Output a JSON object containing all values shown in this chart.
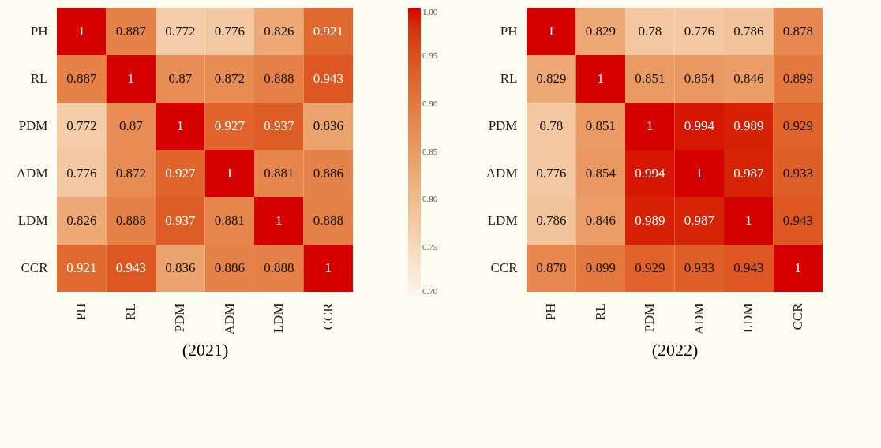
{
  "chart_data": [
    {
      "type": "heatmap",
      "xlabel": "(2021)",
      "categories": [
        "PH",
        "RL",
        "PDM",
        "ADM",
        "LDM",
        "CCR"
      ],
      "y_categories": [
        "PH",
        "RL",
        "PDM",
        "ADM",
        "LDM",
        "CCR"
      ],
      "cells": [
        [
          1,
          0.887,
          0.772,
          0.776,
          0.826,
          0.921
        ],
        [
          0.887,
          1,
          0.87,
          0.872,
          0.888,
          0.943
        ],
        [
          0.772,
          0.87,
          1,
          0.927,
          0.937,
          0.836
        ],
        [
          0.776,
          0.872,
          0.927,
          1,
          0.881,
          0.886
        ],
        [
          0.826,
          0.888,
          0.937,
          0.881,
          1,
          0.888
        ],
        [
          0.921,
          0.943,
          0.836,
          0.886,
          0.888,
          1
        ]
      ],
      "data_labels": true,
      "clim": [
        0.7,
        1
      ],
      "cticks": [
        {
          "value": 0.7,
          "label": "0.70"
        },
        {
          "value": 0.75,
          "label": "0.75"
        },
        {
          "value": 0.8,
          "label": "0.80"
        },
        {
          "value": 0.85,
          "label": "0.85"
        },
        {
          "value": 0.9,
          "label": "0.90"
        },
        {
          "value": 0.95,
          "label": "0.95"
        },
        {
          "value": 1,
          "label": "1.00"
        }
      ]
    },
    {
      "type": "heatmap",
      "xlabel": "(2022)",
      "categories": [
        "PH",
        "RL",
        "PDM",
        "ADM",
        "LDM",
        "CCR"
      ],
      "y_categories": [
        "PH",
        "RL",
        "PDM",
        "ADM",
        "LDM",
        "CCR"
      ],
      "cells": [
        [
          1,
          0.829,
          0.78,
          0.776,
          0.786,
          0.878
        ],
        [
          0.829,
          1,
          0.851,
          0.854,
          0.846,
          0.899
        ],
        [
          0.78,
          0.851,
          1,
          0.994,
          0.989,
          0.929
        ],
        [
          0.776,
          0.854,
          0.994,
          1,
          0.987,
          0.933
        ],
        [
          0.786,
          0.846,
          0.989,
          0.987,
          1,
          0.943
        ],
        [
          0.878,
          0.899,
          0.929,
          0.933,
          0.943,
          1
        ]
      ],
      "data_labels": true
    }
  ]
}
